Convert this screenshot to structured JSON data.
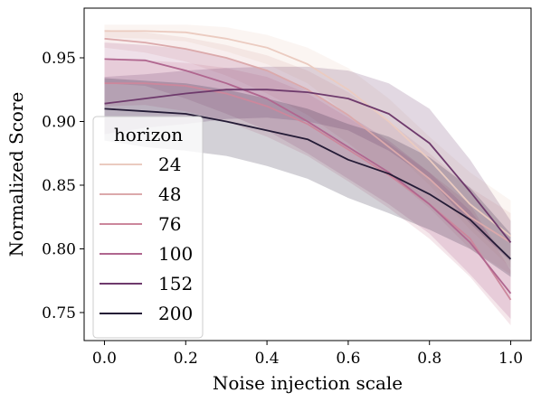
{
  "chart_data": {
    "type": "line",
    "title": "",
    "xlabel": "Noise injection scale",
    "ylabel": "Normalized Score",
    "xlim": [
      -0.05,
      1.05
    ],
    "ylim": [
      0.728,
      0.989
    ],
    "xticks": [
      "0.0",
      "0.2",
      "0.4",
      "0.6",
      "0.8",
      "1.0"
    ],
    "yticks": [
      "0.75",
      "0.80",
      "0.85",
      "0.90",
      "0.95"
    ],
    "grid": false,
    "legend": {
      "title": "horizon",
      "position": "center-left"
    },
    "x": [
      0.0,
      0.1,
      0.2,
      0.3,
      0.4,
      0.5,
      0.6,
      0.7,
      0.8,
      0.9,
      1.0
    ],
    "series": [
      {
        "name": "24",
        "color": "#ebcbc0",
        "values": [
          0.971,
          0.971,
          0.97,
          0.965,
          0.958,
          0.945,
          0.925,
          0.9,
          0.87,
          0.835,
          0.81
        ],
        "lower": [
          0.966,
          0.965,
          0.963,
          0.955,
          0.945,
          0.93,
          0.905,
          0.88,
          0.85,
          0.815,
          0.785
        ],
        "upper": [
          0.976,
          0.976,
          0.976,
          0.974,
          0.968,
          0.958,
          0.942,
          0.918,
          0.888,
          0.86,
          0.838
        ]
      },
      {
        "name": "48",
        "color": "#dba9ab",
        "values": [
          0.965,
          0.962,
          0.957,
          0.95,
          0.94,
          0.925,
          0.905,
          0.88,
          0.855,
          0.825,
          0.805
        ],
        "lower": [
          0.958,
          0.954,
          0.947,
          0.936,
          0.922,
          0.905,
          0.883,
          0.858,
          0.832,
          0.8,
          0.78
        ],
        "upper": [
          0.972,
          0.97,
          0.966,
          0.96,
          0.952,
          0.94,
          0.923,
          0.9,
          0.875,
          0.848,
          0.828
        ]
      },
      {
        "name": "76",
        "color": "#cc879c",
        "values": [
          0.93,
          0.93,
          0.928,
          0.922,
          0.912,
          0.898,
          0.878,
          0.858,
          0.835,
          0.808,
          0.76
        ],
        "lower": [
          0.912,
          0.913,
          0.908,
          0.9,
          0.888,
          0.873,
          0.853,
          0.832,
          0.808,
          0.778,
          0.74
        ],
        "upper": [
          0.948,
          0.948,
          0.946,
          0.942,
          0.935,
          0.922,
          0.903,
          0.883,
          0.86,
          0.835,
          0.783
        ]
      },
      {
        "name": "100",
        "color": "#b0668f",
        "values": [
          0.949,
          0.948,
          0.94,
          0.93,
          0.918,
          0.9,
          0.88,
          0.86,
          0.835,
          0.805,
          0.765
        ],
        "lower": [
          0.93,
          0.928,
          0.918,
          0.906,
          0.893,
          0.875,
          0.855,
          0.835,
          0.812,
          0.78,
          0.745
        ],
        "upper": [
          0.962,
          0.96,
          0.957,
          0.95,
          0.94,
          0.924,
          0.905,
          0.885,
          0.86,
          0.83,
          0.79
        ]
      },
      {
        "name": "152",
        "color": "#6e3a6c",
        "values": [
          0.914,
          0.918,
          0.922,
          0.925,
          0.925,
          0.923,
          0.918,
          0.906,
          0.883,
          0.845,
          0.805
        ],
        "lower": [
          0.89,
          0.895,
          0.898,
          0.902,
          0.903,
          0.9,
          0.893,
          0.877,
          0.855,
          0.82,
          0.79
        ],
        "upper": [
          0.935,
          0.937,
          0.94,
          0.942,
          0.943,
          0.943,
          0.94,
          0.93,
          0.91,
          0.87,
          0.822
        ]
      },
      {
        "name": "200",
        "color": "#241b36",
        "values": [
          0.91,
          0.908,
          0.906,
          0.9,
          0.893,
          0.886,
          0.87,
          0.859,
          0.843,
          0.823,
          0.792
        ],
        "lower": [
          0.885,
          0.88,
          0.877,
          0.873,
          0.865,
          0.855,
          0.84,
          0.828,
          0.815,
          0.8,
          0.778
        ],
        "upper": [
          0.934,
          0.932,
          0.93,
          0.925,
          0.918,
          0.91,
          0.898,
          0.888,
          0.872,
          0.848,
          0.812
        ]
      }
    ]
  }
}
